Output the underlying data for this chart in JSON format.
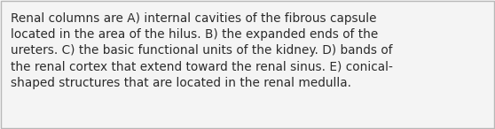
{
  "line1": "Renal columns are A) internal cavities of the fibrous capsule",
  "line2": "located in the area of the hilus. B) the expanded ends of the",
  "line3": "ureters. C) the basic functional units of the kidney. D) bands of",
  "line4": "the renal cortex that extend toward the renal sinus. E) conical-",
  "line5": "shaped structures that are located in the renal medulla.",
  "background_color": "#f4f4f4",
  "border_color": "#b8b8b8",
  "text_color": "#2b2b2b",
  "font_size": 9.8,
  "fig_width": 5.58,
  "fig_height": 1.46,
  "dpi": 100
}
